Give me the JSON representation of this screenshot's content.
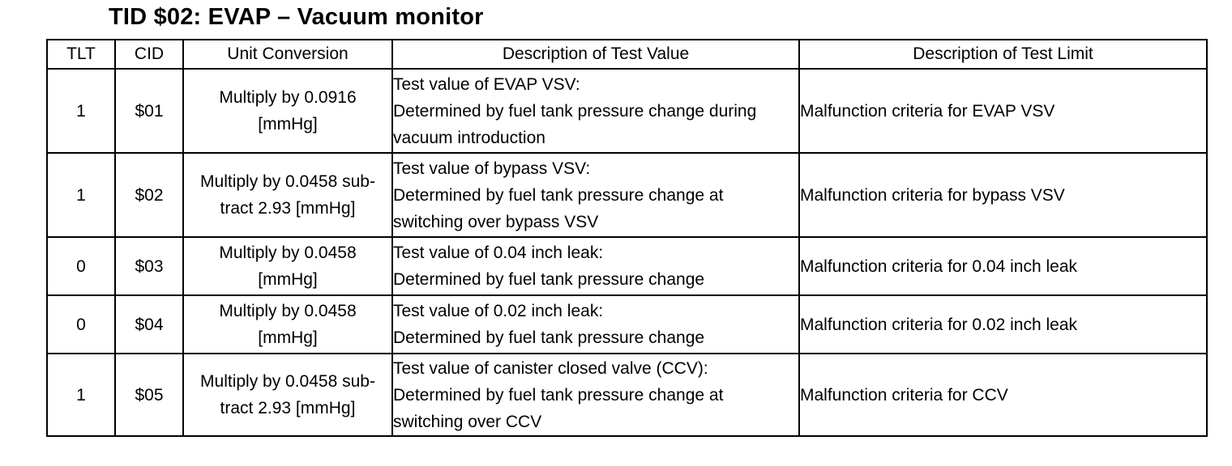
{
  "title": "TID $02: EVAP – Vacuum monitor",
  "table": {
    "headers": [
      "TLT",
      "CID",
      "Unit Conversion",
      "Description of Test Value",
      "Description of Test Limit"
    ],
    "rows": [
      {
        "tlt": "1",
        "cid": "$01",
        "conversion": [
          "Multiply by 0.0916",
          "[mmHg]"
        ],
        "description": [
          "Test value of EVAP VSV:",
          "Determined by fuel tank pressure change during",
          "vacuum introduction"
        ],
        "limit": "Malfunction criteria for EVAP VSV"
      },
      {
        "tlt": "1",
        "cid": "$02",
        "conversion": [
          "Multiply by 0.0458 sub-",
          "tract 2.93 [mmHg]"
        ],
        "description": [
          "Test value of bypass VSV:",
          "Determined by fuel tank pressure change at",
          "switching over bypass VSV"
        ],
        "limit": "Malfunction criteria for bypass VSV"
      },
      {
        "tlt": "0",
        "cid": "$03",
        "conversion": [
          "Multiply by 0.0458",
          "[mmHg]"
        ],
        "description": [
          "Test value of 0.04 inch leak:",
          "Determined by fuel tank pressure change"
        ],
        "limit": "Malfunction criteria for 0.04 inch leak"
      },
      {
        "tlt": "0",
        "cid": "$04",
        "conversion": [
          "Multiply by 0.0458",
          "[mmHg]"
        ],
        "description": [
          "Test value of 0.02 inch leak:",
          "Determined by fuel tank pressure change"
        ],
        "limit": "Malfunction criteria for 0.02 inch leak"
      },
      {
        "tlt": "1",
        "cid": "$05",
        "conversion": [
          "Multiply by 0.0458 sub-",
          "tract 2.93 [mmHg]"
        ],
        "description": [
          "Test value of canister closed valve (CCV):",
          "Determined by fuel tank pressure change at",
          "switching over CCV"
        ],
        "limit": "Malfunction criteria for CCV"
      }
    ]
  }
}
